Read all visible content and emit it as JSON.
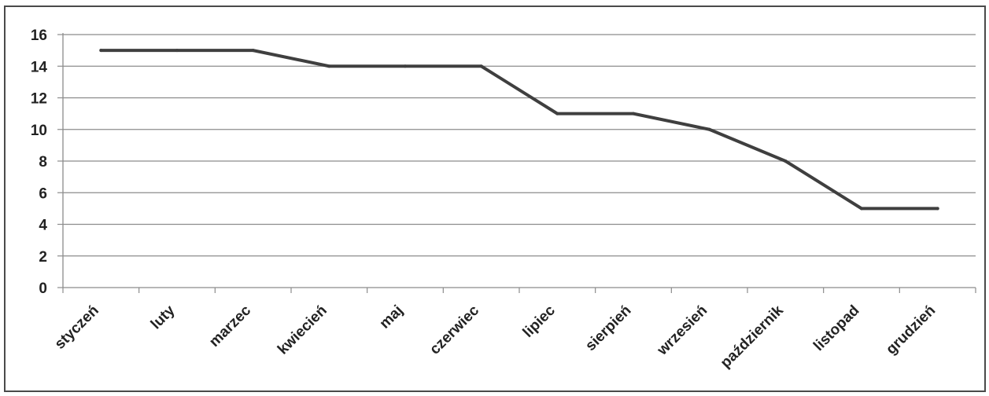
{
  "chart_data": {
    "type": "line",
    "categories": [
      "styczeń",
      "luty",
      "marzec",
      "kwiecień",
      "maj",
      "czerwiec",
      "lipiec",
      "sierpień",
      "wrzesień",
      "październik",
      "listopad",
      "grudzień"
    ],
    "series": [
      {
        "values": [
          15,
          15,
          15,
          14,
          14,
          14,
          11,
          11,
          10,
          8,
          5,
          5
        ]
      }
    ],
    "yticks": [
      "0",
      "2",
      "4",
      "6",
      "8",
      "10",
      "12",
      "14",
      "16"
    ],
    "ylim": [
      0,
      16
    ],
    "grid": true,
    "legend": "none",
    "colors": {
      "line": "#3f3f3f",
      "grid": "#8c8c8c",
      "axis": "#8c8c8c",
      "frame": "#4a4a4a",
      "text": "#222222"
    }
  }
}
